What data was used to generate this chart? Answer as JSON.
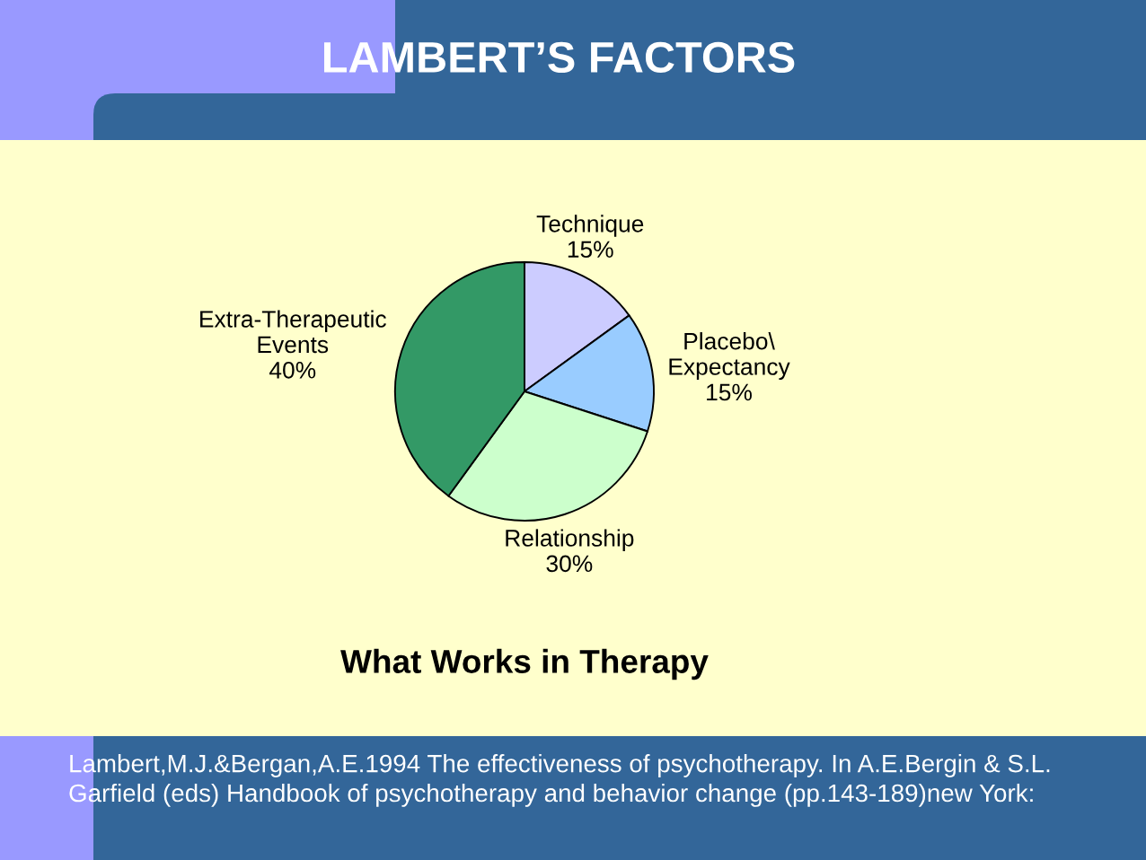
{
  "chart_data": {
    "type": "pie",
    "title": "LAMBERT’S FACTORS",
    "subtitle": "What Works in Therapy",
    "categories": [
      "Technique",
      "Placebo\\\nExpectancy",
      "Relationship",
      "Extra-Therapeutic\nEvents"
    ],
    "values": [
      15,
      15,
      30,
      40
    ],
    "value_labels": [
      "15%",
      "15%",
      "30%",
      "40%"
    ],
    "colors": [
      "#ccccff",
      "#99ccff",
      "#ccffcc",
      "#339966"
    ],
    "annotations": [
      "Lambert,M.J.&Bergan,A.E.1994 The effectiveness of psychotherapy. In A.E.Bergin & S.L.\nGarfield (eds) Handbook of psychotherapy and behavior change (pp.143-189)new York:"
    ]
  }
}
